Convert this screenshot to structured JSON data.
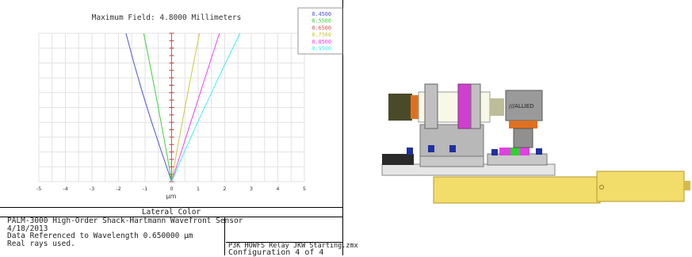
{
  "chart_data": {
    "type": "line",
    "title": "Maximum Field: 4.8000 Millimeters",
    "xlabel": "µm",
    "ylabel": "",
    "xlim": [
      -5,
      5
    ],
    "ylim": [
      0,
      4.8
    ],
    "x_ticks": [
      "-5",
      "-4",
      "-3",
      "-2",
      "-1",
      "0",
      "1",
      "2",
      "3",
      "4",
      "5"
    ],
    "grid": true,
    "legend_position": "top-right",
    "series": [
      {
        "name": "0.4500",
        "color": "#5050e0",
        "points": [
          [
            0,
            0
          ],
          [
            -0.38,
            0.96
          ],
          [
            -0.75,
            1.92
          ],
          [
            -1.1,
            2.88
          ],
          [
            -1.42,
            3.84
          ],
          [
            -1.72,
            4.8
          ]
        ]
      },
      {
        "name": "0.5500",
        "color": "#40d040",
        "points": [
          [
            0,
            0
          ],
          [
            -0.19,
            0.96
          ],
          [
            -0.4,
            1.92
          ],
          [
            -0.61,
            2.88
          ],
          [
            -0.83,
            3.84
          ],
          [
            -1.05,
            4.8
          ]
        ]
      },
      {
        "name": "0.6500",
        "color": "#e05050",
        "points": [
          [
            0,
            0
          ],
          [
            0,
            4.8
          ]
        ]
      },
      {
        "name": "0.7500",
        "color": "#c8c840",
        "points": [
          [
            0,
            0
          ],
          [
            0.19,
            0.96
          ],
          [
            0.4,
            1.92
          ],
          [
            0.61,
            2.88
          ],
          [
            0.83,
            3.84
          ],
          [
            1.05,
            4.8
          ]
        ]
      },
      {
        "name": "0.8500",
        "color": "#f040f0",
        "points": [
          [
            0,
            0
          ],
          [
            0.36,
            0.96
          ],
          [
            0.72,
            1.92
          ],
          [
            1.08,
            2.88
          ],
          [
            1.44,
            3.84
          ],
          [
            1.8,
            4.8
          ]
        ]
      },
      {
        "name": "0.9500",
        "color": "#40f0f0",
        "points": [
          [
            0,
            0
          ],
          [
            0.48,
            0.96
          ],
          [
            0.98,
            1.92
          ],
          [
            1.5,
            2.88
          ],
          [
            2.03,
            3.84
          ],
          [
            2.58,
            4.8
          ]
        ]
      }
    ]
  },
  "footer": {
    "plot_name": "Lateral Color",
    "lines": [
      "PALM-3000 High-Order Shack-Hartmann Wavefront Sensor",
      "4/18/2013",
      "Data Referenced to Wavelength 0.650000 µm",
      "Real rays used."
    ],
    "file_name": "P3K HOWFS Relay JKW Starting.zmx",
    "configuration": "Configuration 4 of 4"
  },
  "render": {
    "camera_brand": "///ALLIED"
  }
}
